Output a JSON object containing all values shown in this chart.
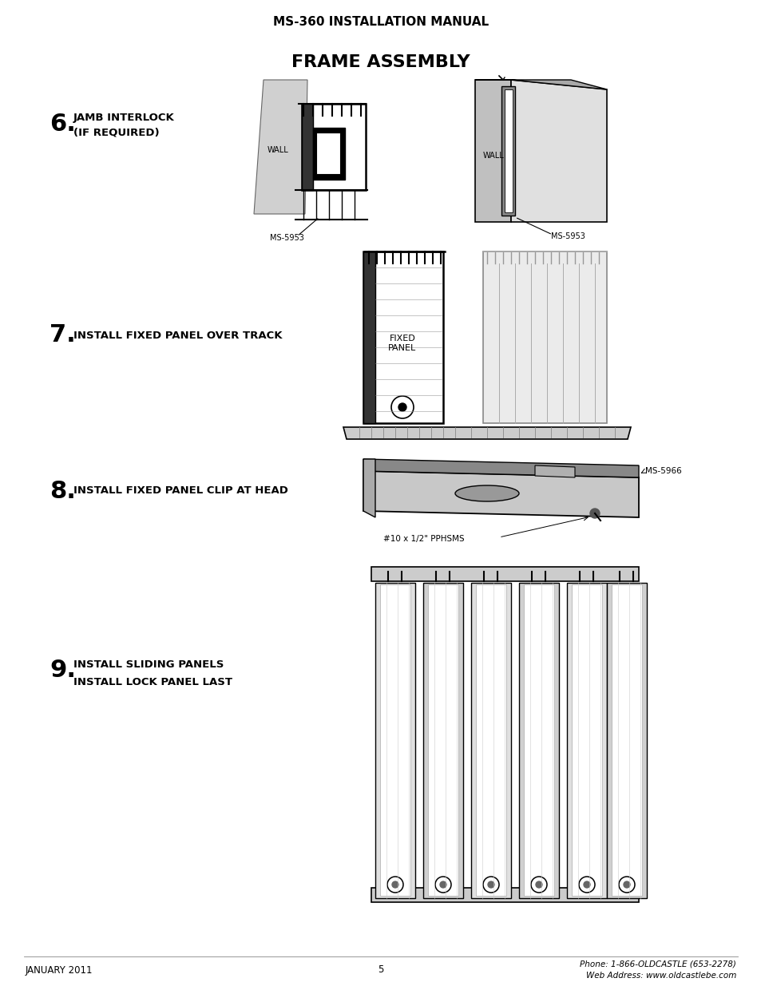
{
  "title_main": "MS-360 INSTALLATION MANUAL",
  "title_section": "FRAME ASSEMBLY",
  "background_color": "#ffffff",
  "text_color": "#000000",
  "step6_number": "6.",
  "step6_line1": "JAMB INTERLOCK",
  "step6_line2": "(IF REQUIRED)",
  "step7_number": "7.",
  "step7_text": "INSTALL FIXED PANEL OVER TRACK",
  "step8_number": "8.",
  "step8_text": "INSTALL FIXED PANEL CLIP AT HEAD",
  "step9_number": "9.",
  "step9_line1": "INSTALL SLIDING PANELS",
  "step9_line2": "INSTALL LOCK PANEL LAST",
  "footer_left": "JANUARY 2011",
  "footer_center": "5",
  "footer_right_line1": "Phone: 1-866-OLDCASTLE (653-2278)",
  "footer_right_line2": "Web Address: www.oldcastlebe.com",
  "label_wall_left": "WALL",
  "label_wall_right": "WALL",
  "label_ms5953_left": "MS-5953",
  "label_ms5953_right": "MS-5953",
  "label_fixed_panel": "FIXED\nPANEL",
  "label_ms5966": "MS-5966",
  "label_screw": "#10 x 1/2\" PPHSMS"
}
